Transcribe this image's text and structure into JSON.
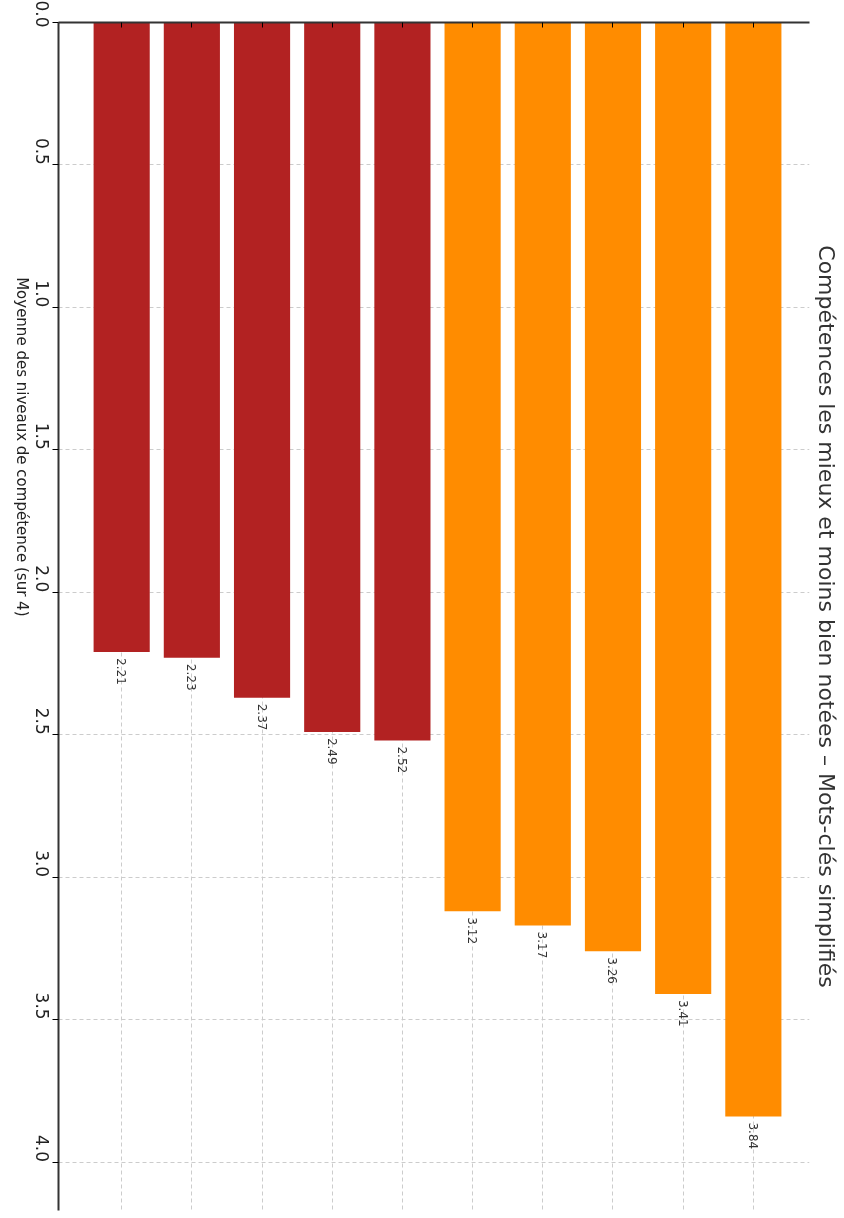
{
  "chart_data": {
    "type": "bar",
    "title": "Compétences les mieux et moins bien notées – Mots-clés simplifiés",
    "ylabel": "Moyenne des niveaux de compétence (sur 4)",
    "categories": [
      null,
      null,
      null,
      null,
      null,
      null,
      null,
      null,
      null,
      null
    ],
    "values": [
      2.21,
      2.23,
      2.37,
      2.49,
      2.52,
      3.12,
      3.17,
      3.26,
      3.41,
      3.84
    ],
    "colors": [
      "#b22222",
      "#b22222",
      "#b22222",
      "#b22222",
      "#b22222",
      "#ff8c00",
      "#ff8c00",
      "#ff8c00",
      "#ff8c00",
      "#ff8c00"
    ],
    "ylim": [
      4.17,
      0
    ],
    "yticks": [
      {
        "value": 0,
        "label": "0.0"
      },
      0.5,
      {
        "value": 1,
        "label": "1.0"
      },
      1.5,
      {
        "value": 2,
        "label": "2.0"
      },
      2.5,
      {
        "value": 3,
        "label": "3.0"
      },
      3.5,
      {
        "value": 4,
        "label": "4.0"
      }
    ],
    "data_labels": true,
    "grid": true
  }
}
